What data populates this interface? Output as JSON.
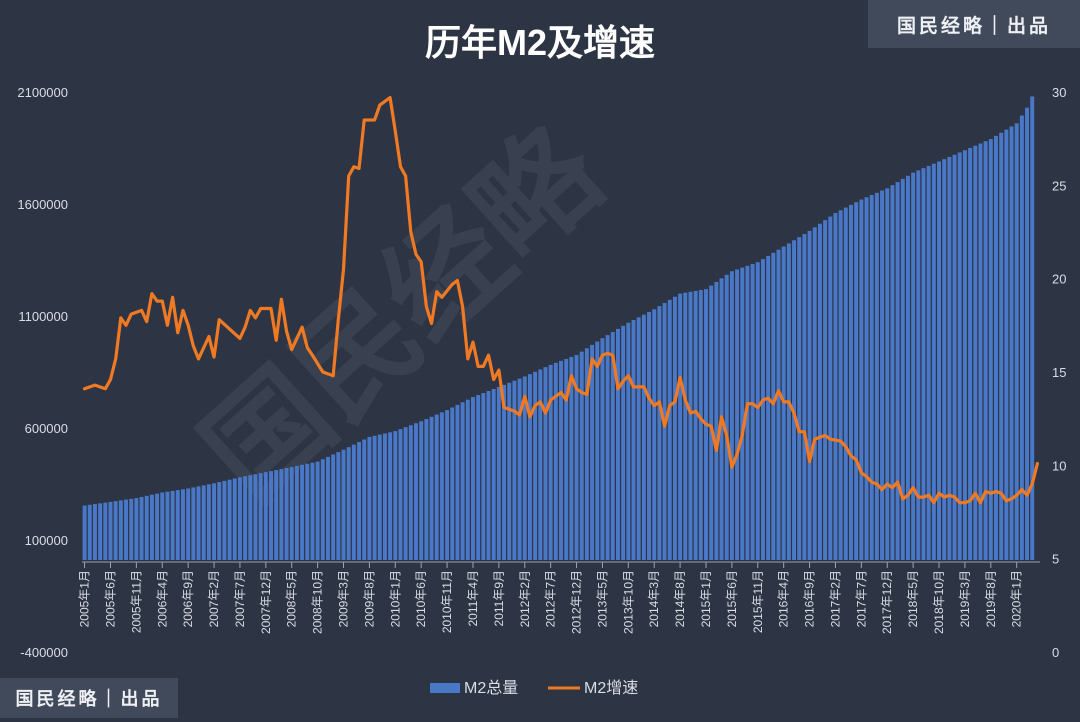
{
  "header": {
    "title": "历年M2及增速"
  },
  "brand": {
    "top_right": "国民经略｜出品",
    "bottom_left": "国民经略｜出品",
    "watermark": "国民经略"
  },
  "chart_data": {
    "type": "bar+line",
    "title": "历年M2及增速",
    "left_axis": {
      "ticks": [
        "2100000",
        "1600000",
        "1100000",
        "600000",
        "100000",
        "-400000"
      ],
      "range": [
        -400000,
        2100000
      ]
    },
    "right_axis": {
      "ticks": [
        "30",
        "25",
        "20",
        "15",
        "10",
        "5",
        "0"
      ],
      "range": [
        0,
        30
      ]
    },
    "x_tick_labels": [
      "2005年1月",
      "2005年6月",
      "2005年11月",
      "2006年4月",
      "2006年9月",
      "2007年2月",
      "2007年7月",
      "2007年12月",
      "2008年5月",
      "2008年10月",
      "2009年3月",
      "2009年8月",
      "2010年1月",
      "2010年6月",
      "2010年11月",
      "2011年4月",
      "2011年9月",
      "2012年2月",
      "2012年7月",
      "2012年12月",
      "2013年5月",
      "2013年10月",
      "2014年3月",
      "2014年8月",
      "2015年1月",
      "2015年6月",
      "2015年11月",
      "2016年4月",
      "2016年9月",
      "2017年2月",
      "2017年7月",
      "2017年12月",
      "2018年5月",
      "2018年10月",
      "2019年3月",
      "2019年8月",
      "2020年1月"
    ],
    "series": [
      {
        "name": "M2总量",
        "type": "bar",
        "axis": "left",
        "color": "#4a78c8",
        "anchors": [
          [
            0,
            254000
          ],
          [
            5,
            270000
          ],
          [
            10,
            287000
          ],
          [
            15,
            312000
          ],
          [
            20,
            330000
          ],
          [
            25,
            353000
          ],
          [
            30,
            380000
          ],
          [
            35,
            403000
          ],
          [
            40,
            426000
          ],
          [
            45,
            450000
          ],
          [
            50,
            503000
          ],
          [
            55,
            560000
          ],
          [
            60,
            586000
          ],
          [
            65,
            630000
          ],
          [
            70,
            680000
          ],
          [
            75,
            738000
          ],
          [
            80,
            783000
          ],
          [
            85,
            830000
          ],
          [
            90,
            882000
          ],
          [
            95,
            926000
          ],
          [
            100,
            1001000
          ],
          [
            105,
            1070000
          ],
          [
            110,
            1130000
          ],
          [
            115,
            1200000
          ],
          [
            120,
            1220000
          ],
          [
            125,
            1300000
          ],
          [
            130,
            1340000
          ],
          [
            135,
            1410000
          ],
          [
            140,
            1480000
          ],
          [
            145,
            1560000
          ],
          [
            150,
            1620000
          ],
          [
            155,
            1670000
          ],
          [
            160,
            1740000
          ],
          [
            165,
            1790000
          ],
          [
            170,
            1840000
          ],
          [
            175,
            1890000
          ],
          [
            180,
            1960000
          ],
          [
            182,
            2030000
          ],
          [
            183,
            2080000
          ]
        ]
      },
      {
        "name": "M2增速",
        "type": "line",
        "axis": "right",
        "color": "#f07a23",
        "points": [
          [
            0,
            14.1
          ],
          [
            2,
            14.3
          ],
          [
            4,
            14.1
          ],
          [
            5,
            14.6
          ],
          [
            6,
            15.7
          ],
          [
            7,
            17.9
          ],
          [
            8,
            17.5
          ],
          [
            9,
            18.1
          ],
          [
            11,
            18.3
          ],
          [
            12,
            17.7
          ],
          [
            13,
            19.2
          ],
          [
            14,
            18.8
          ],
          [
            15,
            18.8
          ],
          [
            16,
            17.5
          ],
          [
            17,
            19.0
          ],
          [
            18,
            17.1
          ],
          [
            19,
            18.3
          ],
          [
            20,
            17.5
          ],
          [
            21,
            16.4
          ],
          [
            22,
            15.7
          ],
          [
            24,
            16.9
          ],
          [
            25,
            15.8
          ],
          [
            26,
            17.8
          ],
          [
            28,
            17.3
          ],
          [
            30,
            16.8
          ],
          [
            31,
            17.4
          ],
          [
            32,
            18.3
          ],
          [
            33,
            17.9
          ],
          [
            34,
            18.4
          ],
          [
            36,
            18.4
          ],
          [
            37,
            16.7
          ],
          [
            38,
            18.9
          ],
          [
            39,
            17.2
          ],
          [
            40,
            16.2
          ],
          [
            42,
            17.4
          ],
          [
            43,
            16.3
          ],
          [
            44,
            15.9
          ],
          [
            46,
            15.0
          ],
          [
            48,
            14.8
          ],
          [
            49,
            17.8
          ],
          [
            50,
            20.5
          ],
          [
            51,
            25.5
          ],
          [
            52,
            26.0
          ],
          [
            53,
            25.9
          ],
          [
            54,
            28.5
          ],
          [
            56,
            28.5
          ],
          [
            57,
            29.3
          ],
          [
            59,
            29.7
          ],
          [
            60,
            27.9
          ],
          [
            61,
            26.0
          ],
          [
            62,
            25.5
          ],
          [
            63,
            22.5
          ],
          [
            64,
            21.3
          ],
          [
            65,
            20.9
          ],
          [
            66,
            18.5
          ],
          [
            67,
            17.6
          ],
          [
            68,
            19.3
          ],
          [
            69,
            19.0
          ],
          [
            71,
            19.7
          ],
          [
            72,
            19.9
          ],
          [
            73,
            18.5
          ],
          [
            74,
            15.7
          ],
          [
            75,
            16.6
          ],
          [
            76,
            15.3
          ],
          [
            77,
            15.3
          ],
          [
            78,
            15.9
          ],
          [
            79,
            14.6
          ],
          [
            80,
            15.1
          ],
          [
            81,
            13.1
          ],
          [
            82,
            13.0
          ],
          [
            83,
            12.9
          ],
          [
            84,
            12.7
          ],
          [
            85,
            13.7
          ],
          [
            86,
            12.6
          ],
          [
            87,
            13.2
          ],
          [
            88,
            13.4
          ],
          [
            89,
            12.8
          ],
          [
            90,
            13.5
          ],
          [
            92,
            13.9
          ],
          [
            93,
            13.5
          ],
          [
            94,
            14.8
          ],
          [
            95,
            14.1
          ],
          [
            96,
            13.9
          ],
          [
            97,
            13.8
          ],
          [
            98,
            15.7
          ],
          [
            99,
            15.3
          ],
          [
            100,
            15.9
          ],
          [
            101,
            16.0
          ],
          [
            102,
            15.9
          ],
          [
            103,
            14.1
          ],
          [
            104,
            14.5
          ],
          [
            105,
            14.8
          ],
          [
            106,
            14.2
          ],
          [
            108,
            14.2
          ],
          [
            109,
            13.6
          ],
          [
            110,
            13.2
          ],
          [
            111,
            13.4
          ],
          [
            112,
            12.1
          ],
          [
            113,
            13.2
          ],
          [
            114,
            13.4
          ],
          [
            115,
            14.7
          ],
          [
            116,
            13.5
          ],
          [
            117,
            12.8
          ],
          [
            118,
            12.9
          ],
          [
            119,
            12.5
          ],
          [
            120,
            12.2
          ],
          [
            121,
            12.1
          ],
          [
            122,
            10.8
          ],
          [
            123,
            12.6
          ],
          [
            124,
            11.6
          ],
          [
            125,
            9.9
          ],
          [
            126,
            10.6
          ],
          [
            127,
            11.6
          ],
          [
            128,
            13.3
          ],
          [
            129,
            13.3
          ],
          [
            130,
            13.1
          ],
          [
            131,
            13.5
          ],
          [
            132,
            13.6
          ],
          [
            133,
            13.3
          ],
          [
            134,
            14.0
          ],
          [
            135,
            13.4
          ],
          [
            136,
            13.4
          ],
          [
            137,
            12.8
          ],
          [
            138,
            11.8
          ],
          [
            139,
            11.8
          ],
          [
            140,
            10.2
          ],
          [
            141,
            11.4
          ],
          [
            142,
            11.5
          ],
          [
            143,
            11.6
          ],
          [
            144,
            11.4
          ],
          [
            146,
            11.3
          ],
          [
            147,
            11.0
          ],
          [
            148,
            10.5
          ],
          [
            149,
            10.3
          ],
          [
            150,
            9.6
          ],
          [
            151,
            9.4
          ],
          [
            152,
            9.1
          ],
          [
            153,
            9.0
          ],
          [
            154,
            8.7
          ],
          [
            155,
            9.0
          ],
          [
            156,
            8.8
          ],
          [
            157,
            9.1
          ],
          [
            158,
            8.2
          ],
          [
            159,
            8.4
          ],
          [
            160,
            8.8
          ],
          [
            161,
            8.3
          ],
          [
            162,
            8.3
          ],
          [
            163,
            8.4
          ],
          [
            164,
            8.0
          ],
          [
            165,
            8.5
          ],
          [
            166,
            8.3
          ],
          [
            167,
            8.4
          ],
          [
            168,
            8.3
          ],
          [
            169,
            8.0
          ],
          [
            170,
            8.0
          ],
          [
            171,
            8.1
          ],
          [
            172,
            8.5
          ],
          [
            173,
            8.0
          ],
          [
            174,
            8.6
          ],
          [
            175,
            8.5
          ],
          [
            176,
            8.6
          ],
          [
            177,
            8.5
          ],
          [
            178,
            8.1
          ],
          [
            179,
            8.2
          ],
          [
            180,
            8.4
          ],
          [
            181,
            8.7
          ],
          [
            182,
            8.4
          ],
          [
            183,
            9.0
          ],
          [
            184,
            10.1
          ]
        ]
      }
    ],
    "legend": {
      "position": "bottom-center"
    }
  }
}
